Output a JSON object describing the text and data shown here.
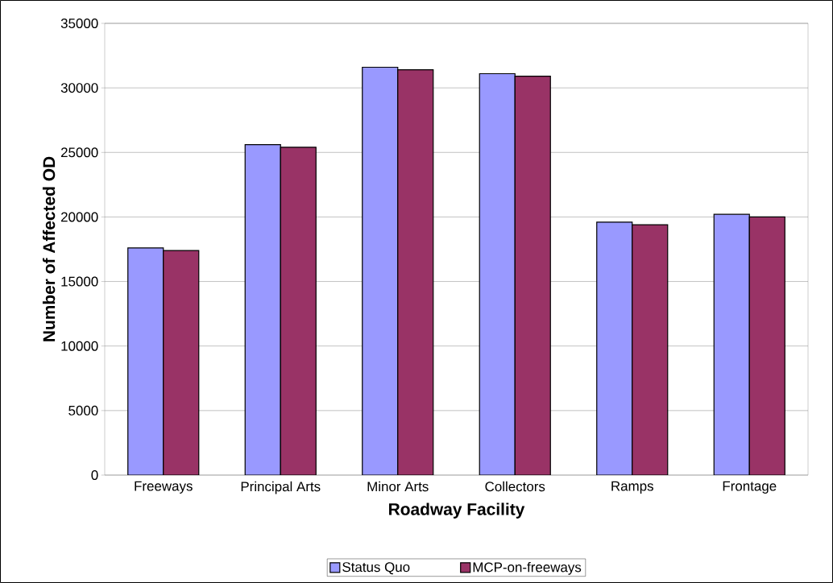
{
  "chart_data": {
    "type": "bar",
    "xlabel": "Roadway Facility",
    "ylabel": "Number of Affected OD",
    "categories": [
      "Freeways",
      "Principal Arts",
      "Minor Arts",
      "Collectors",
      "Ramps",
      "Frontage"
    ],
    "series": [
      {
        "name": "Status Quo",
        "color": "#9999ff",
        "values": [
          17600,
          25600,
          31600,
          31100,
          19600,
          20200
        ]
      },
      {
        "name": "MCP-on-freeways",
        "color": "#993366",
        "values": [
          17400,
          25400,
          31400,
          30900,
          19400,
          20000
        ]
      }
    ],
    "ylim": [
      0,
      35000
    ],
    "yticks": [
      0,
      5000,
      10000,
      15000,
      20000,
      25000,
      30000,
      35000
    ],
    "grid": "y",
    "legend": "bottom"
  }
}
